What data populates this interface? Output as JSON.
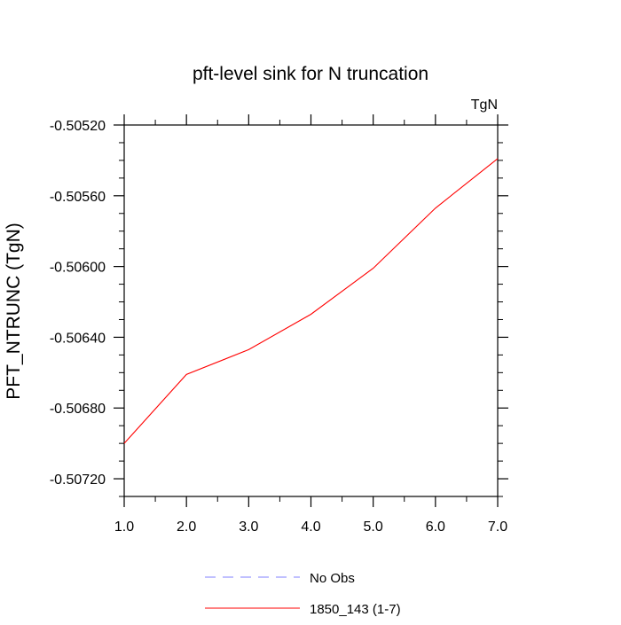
{
  "chart_data": {
    "type": "line",
    "title": "pft-level sink for N truncation",
    "units_label": "TgN",
    "ylabel": "PFT_NTRUNC  (TgN)",
    "xlabel": "",
    "xlim": [
      1.0,
      7.0
    ],
    "ylim": [
      -0.5073,
      -0.5052
    ],
    "x_ticks": [
      1,
      2,
      3,
      4,
      5,
      6,
      7
    ],
    "x_tick_labels": [
      "1.0",
      "2.0",
      "3.0",
      "4.0",
      "5.0",
      "6.0",
      "7.0"
    ],
    "y_ticks": [
      -0.5052,
      -0.5056,
      -0.506,
      -0.5064,
      -0.5068,
      -0.5072
    ],
    "y_tick_labels": [
      "-0.50520",
      "-0.50560",
      "-0.50600",
      "-0.50640",
      "-0.50680",
      "-0.50720"
    ],
    "y_minor_step": 0.0001,
    "x_minor_step": 0.5,
    "grid": false,
    "series": [
      {
        "name": "1850_143 (1-7)",
        "color": "#ff0000",
        "dash": "solid",
        "x": [
          1,
          2,
          3,
          4,
          5,
          6,
          7
        ],
        "y": [
          -0.507,
          -0.50661,
          -0.50647,
          -0.50627,
          -0.50601,
          -0.50567,
          -0.50539
        ]
      }
    ],
    "legend": {
      "position": "bottom",
      "entries": [
        {
          "label": "No Obs",
          "color": "#8080ff",
          "dash": "dashed"
        },
        {
          "label": "1850_143 (1-7)",
          "color": "#ff0000",
          "dash": "solid"
        }
      ]
    }
  }
}
